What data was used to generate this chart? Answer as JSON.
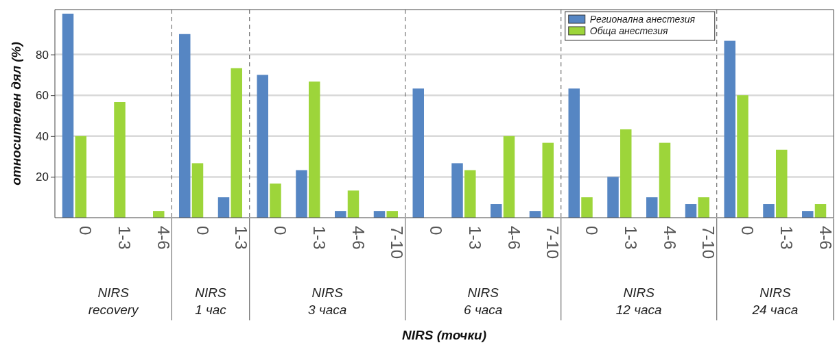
{
  "chart_data": [
    {
      "type": "bar",
      "ylabel": "относителен дял (%)",
      "xlabel": "NIRS recovery",
      "annotations": [
        "NIRS (точки)"
      ],
      "categories": [
        "0",
        "1-3",
        "4-6"
      ],
      "ylim": [
        0,
        102
      ],
      "yticks": [
        20,
        40,
        60,
        80
      ],
      "grid": "y",
      "series": [
        {
          "color": "#5686c3",
          "values": [
            100,
            0,
            0
          ]
        },
        {
          "color": "#9dd53a",
          "values": [
            40,
            56.7,
            3.3
          ]
        }
      ]
    },
    {
      "type": "bar",
      "xlabel": "NIRS 1 час",
      "categories": [
        "0",
        "1-3"
      ],
      "ylim": [
        0,
        102
      ],
      "yticks": [
        20,
        40,
        60,
        80
      ],
      "grid": "y",
      "tick_labels": "x",
      "series": [
        {
          "color": "#5686c3",
          "values": [
            90,
            10
          ]
        },
        {
          "color": "#9dd53a",
          "values": [
            26.7,
            73.3
          ]
        }
      ]
    },
    {
      "type": "bar",
      "xlabel": "NIRS 3 часа",
      "categories": [
        "0",
        "1-3",
        "4-6",
        "7-10"
      ],
      "ylim": [
        0,
        102
      ],
      "yticks": [
        20,
        40,
        60,
        80
      ],
      "grid": "y",
      "tick_labels": "x",
      "series": [
        {
          "color": "#5686c3",
          "values": [
            70,
            23.3,
            3.3,
            3.3
          ]
        },
        {
          "color": "#9dd53a",
          "values": [
            16.7,
            66.7,
            13.3,
            3.3
          ]
        }
      ]
    },
    {
      "type": "bar",
      "xlabel": "NIRS 6 часа",
      "categories": [
        "0",
        "1-3",
        "4-6",
        "7-10"
      ],
      "ylim": [
        0,
        102
      ],
      "yticks": [
        20,
        40,
        60,
        80
      ],
      "grid": "y",
      "tick_labels": "x",
      "series": [
        {
          "color": "#5686c3",
          "values": [
            63.3,
            26.7,
            6.7,
            3.3
          ]
        },
        {
          "color": "#9dd53a",
          "values": [
            0,
            23.3,
            40,
            36.7
          ]
        }
      ]
    },
    {
      "type": "bar",
      "xlabel": "NIRS 12 часа",
      "categories": [
        "0",
        "1-3",
        "4-6",
        "7-10"
      ],
      "ylim": [
        0,
        102
      ],
      "yticks": [
        20,
        40,
        60,
        80
      ],
      "grid": "y",
      "tick_labels": "x",
      "legend": "top right",
      "series": [
        {
          "name": "Регионална анестезия",
          "color": "#5686c3",
          "values": [
            63.3,
            20,
            10,
            6.7
          ]
        },
        {
          "name": "Обща анестезия",
          "color": "#9dd53a",
          "values": [
            10,
            43.3,
            36.7,
            10
          ]
        }
      ]
    },
    {
      "type": "bar",
      "xlabel": "NIRS 24 часа",
      "categories": [
        "0",
        "1-3",
        "4-6"
      ],
      "ylim": [
        0,
        102
      ],
      "yticks": [
        20,
        40,
        60,
        80
      ],
      "grid": "y",
      "tick_labels": "x",
      "series": [
        {
          "color": "#5686c3",
          "values": [
            86.7,
            6.7,
            3.3
          ]
        },
        {
          "color": "#9dd53a",
          "values": [
            60,
            33.3,
            6.7
          ]
        }
      ]
    }
  ]
}
